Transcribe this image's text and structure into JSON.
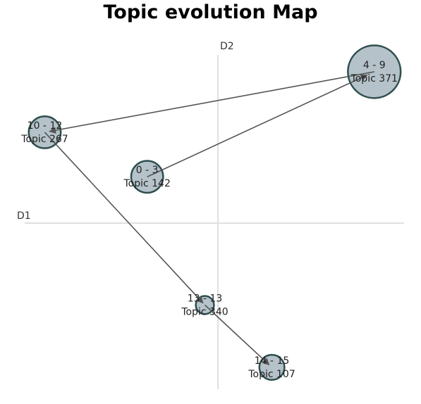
{
  "chart_data": {
    "type": "scatter",
    "title": "Topic evolution Map",
    "xlabel": "D1",
    "ylabel": "D2",
    "xlim": [
      -1,
      1
    ],
    "ylim": [
      -1,
      1
    ],
    "grid": false,
    "colors": {
      "node_fill": "#b5c2c9",
      "node_stroke": "#2f4f4f",
      "edge": "#555555",
      "axis": "#e0e0e0"
    },
    "nodes": [
      {
        "id": "n0",
        "period": "0 - 3",
        "topic": "Topic 142",
        "x": -0.38,
        "y": 0.26,
        "size": 3
      },
      {
        "id": "n1",
        "period": "4 - 9",
        "topic": "Topic 371",
        "x": 0.84,
        "y": 0.85,
        "size": 6
      },
      {
        "id": "n2",
        "period": "10 - 12",
        "topic": "Topic 267",
        "x": -0.93,
        "y": 0.51,
        "size": 3
      },
      {
        "id": "n3",
        "period": "13 - 13",
        "topic": "Topic 340",
        "x": -0.07,
        "y": -0.46,
        "size": 1
      },
      {
        "id": "n4",
        "period": "14 - 15",
        "topic": "Topic 107",
        "x": 0.29,
        "y": -0.81,
        "size": 2
      }
    ],
    "edges": [
      {
        "from": "n0",
        "to": "n1"
      },
      {
        "from": "n1",
        "to": "n2"
      },
      {
        "from": "n2",
        "to": "n3"
      },
      {
        "from": "n3",
        "to": "n4"
      }
    ]
  }
}
